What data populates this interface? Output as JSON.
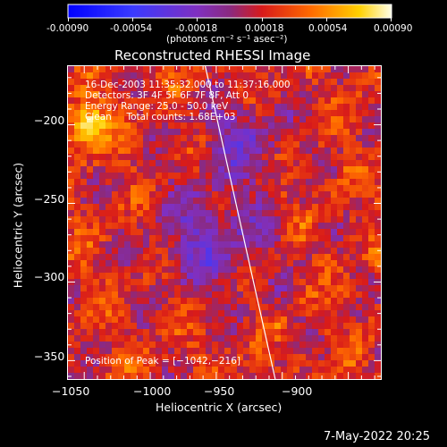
{
  "colorbar": {
    "ticks": [
      "-0.00090",
      "-0.00054",
      "-0.00018",
      "0.00018",
      "0.00054",
      "0.00090"
    ],
    "units": "(photons cm⁻² s⁻¹ asec⁻²)",
    "range": [
      -0.0009,
      0.0009
    ]
  },
  "chart_data": {
    "type": "heatmap",
    "title": "Reconstructed RHESSI Image",
    "xlabel": "Heliocentric X (arcsec)",
    "ylabel": "Heliocentric Y (arcsec)",
    "xlim": [
      -1062,
      -825
    ],
    "ylim": [
      -362,
      -163
    ],
    "x_ticks": [
      -1050,
      -1000,
      -950,
      -900
    ],
    "y_ticks": [
      -200,
      -250,
      -300,
      -350
    ],
    "x_tick_labels": [
      "−1050",
      "−1000",
      "−950",
      "−900"
    ],
    "y_tick_labels": [
      "−200",
      "−250",
      "−300",
      "−350"
    ],
    "annotations": [
      "16-Dec-2003 11:35:32.000 to 11:37:16.000",
      "Detectors: 3F 4F 5F 6F 7F 8F, Att 0",
      "Energy Range: 25.0 - 50.0 keV",
      "Clean     Total counts: 1.68E+03"
    ],
    "peak_label": "Position of Peak = [−1042,−216]",
    "limb_line": {
      "x": [
        -958,
        -905
      ],
      "y": [
        -163,
        -362
      ]
    },
    "grid": false
  },
  "footer": {
    "date": "7-May-2022 20:25"
  }
}
